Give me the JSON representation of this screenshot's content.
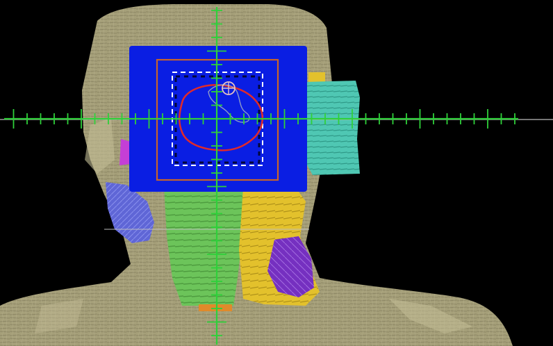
{
  "viewer": {
    "background": "#000000",
    "crosshair_color": "#2fd03a",
    "field_color": "#0a1de0",
    "field_border_color": "#c8642a",
    "target_contour_color": "#e02a2a",
    "margin_contour_color": "#ffffff",
    "isocenter_icon": "isocenter-crosshair-icon"
  },
  "structures": [
    {
      "name": "skin",
      "color": "#a9a37c"
    },
    {
      "name": "eye",
      "color": "#4fc9b6"
    },
    {
      "name": "parotid",
      "color": "#e8c52a"
    },
    {
      "name": "spinal-cord",
      "color": "#6fc65a"
    },
    {
      "name": "lymph-node",
      "color": "#7a2fc6"
    },
    {
      "name": "lobe",
      "color": "#5a62d8"
    },
    {
      "name": "esophagus",
      "color": "#e08a2a"
    }
  ]
}
